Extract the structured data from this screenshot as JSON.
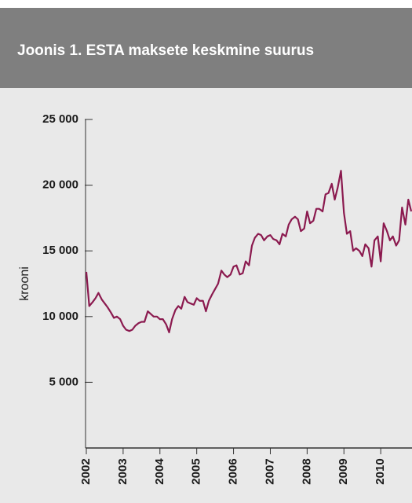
{
  "chart_data": {
    "type": "line",
    "title": "Joonis 1. ESTA maksete keskmine suurus",
    "y_label": "krooni",
    "color": "#8b1a4f",
    "x": [
      2002,
      2002.08,
      2002.17,
      2002.25,
      2002.33,
      2002.42,
      2002.5,
      2002.58,
      2002.67,
      2002.75,
      2002.83,
      2002.92,
      2003,
      2003.08,
      2003.17,
      2003.25,
      2003.33,
      2003.42,
      2003.5,
      2003.58,
      2003.67,
      2003.75,
      2003.83,
      2003.92,
      2004,
      2004.08,
      2004.17,
      2004.25,
      2004.33,
      2004.42,
      2004.5,
      2004.58,
      2004.67,
      2004.75,
      2004.83,
      2004.92,
      2005,
      2005.08,
      2005.17,
      2005.25,
      2005.33,
      2005.42,
      2005.5,
      2005.58,
      2005.67,
      2005.75,
      2005.83,
      2005.92,
      2006,
      2006.08,
      2006.17,
      2006.25,
      2006.33,
      2006.42,
      2006.5,
      2006.58,
      2006.67,
      2006.75,
      2006.83,
      2006.92,
      2007,
      2007.08,
      2007.17,
      2007.25,
      2007.33,
      2007.42,
      2007.5,
      2007.58,
      2007.67,
      2007.75,
      2007.83,
      2007.92,
      2008,
      2008.08,
      2008.17,
      2008.25,
      2008.33,
      2008.42,
      2008.5,
      2008.58,
      2008.67,
      2008.75,
      2008.83,
      2008.92,
      2009,
      2009.08,
      2009.17,
      2009.25,
      2009.33,
      2009.42,
      2009.5,
      2009.58,
      2009.67,
      2009.75,
      2009.83,
      2009.92,
      2010,
      2010.08,
      2010.17,
      2010.25,
      2010.33,
      2010.42,
      2010.5,
      2010.58,
      2010.67,
      2010.75,
      2010.83
    ],
    "values": [
      13400,
      10800,
      11100,
      11400,
      11800,
      11300,
      11000,
      10700,
      10300,
      9900,
      10000,
      9800,
      9300,
      9000,
      8900,
      9000,
      9300,
      9500,
      9600,
      9600,
      10400,
      10200,
      10000,
      10000,
      9800,
      9800,
      9400,
      8800,
      9800,
      10500,
      10800,
      10600,
      11500,
      11100,
      11000,
      10900,
      11400,
      11200,
      11200,
      10400,
      11200,
      11700,
      12100,
      12500,
      13500,
      13200,
      13000,
      13200,
      13800,
      13900,
      13200,
      13300,
      14200,
      13900,
      15400,
      16000,
      16300,
      16200,
      15800,
      16100,
      16200,
      15900,
      15800,
      15500,
      16300,
      16100,
      17000,
      17400,
      17600,
      17400,
      16500,
      16700,
      18000,
      17100,
      17300,
      18200,
      18200,
      18000,
      19300,
      19400,
      20100,
      18900,
      19800,
      21100,
      17900,
      16300,
      16500,
      15000,
      15200,
      15000,
      14600,
      15500,
      15200,
      13800,
      15800,
      16100,
      14200,
      17100,
      16500,
      15800,
      16100,
      15400,
      15800,
      18300,
      17000,
      18900,
      18000
    ],
    "xlim": [
      2002,
      2010.85
    ],
    "xticks": [
      2002,
      2003,
      2004,
      2005,
      2006,
      2007,
      2008,
      2009,
      2010
    ],
    "ylim": [
      0,
      25000
    ],
    "yticks": [
      {
        "value": 5000,
        "label": "5 000"
      },
      {
        "value": 10000,
        "label": "10 000"
      },
      {
        "value": 15000,
        "label": "15 000"
      },
      {
        "value": 20000,
        "label": "20 000"
      },
      {
        "value": 25000,
        "label": "25 000"
      }
    ]
  }
}
